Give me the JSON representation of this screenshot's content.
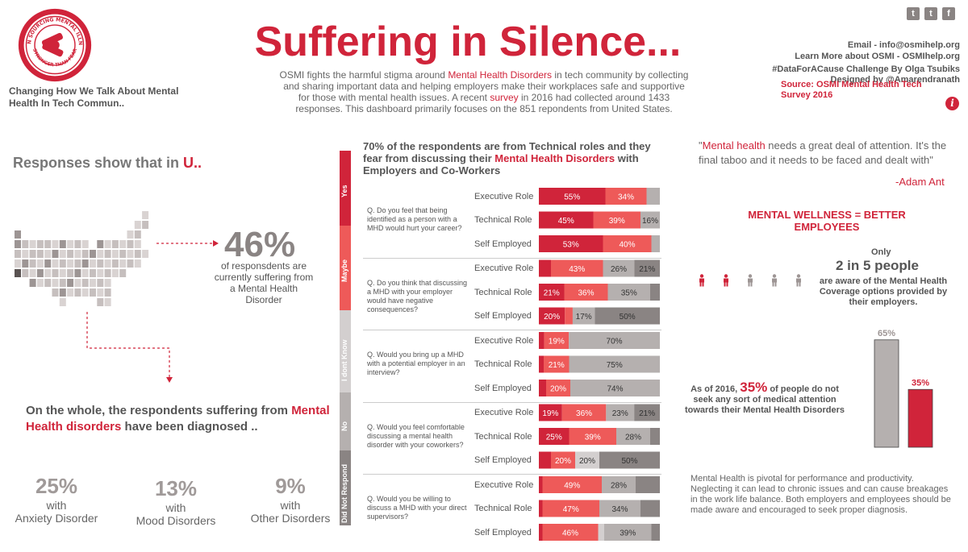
{
  "header": {
    "logo_text_top": "OPEN SOURCING MENTAL ILLNESS",
    "logo_text_bottom": "STRONGER THAN FEAR",
    "tagline": "Changing How We Talk About Mental Health In Tech Commun..",
    "title": "Suffering in Silence...",
    "intro_parts": [
      "OSMI fights the harmful stigma around ",
      "Mental Health Disorders",
      " in tech community by collecting and sharing important data and helping employers make their workplaces safe and supportive for those with mental health issues. A recent ",
      "survey",
      " in 2016 had collected around 1433 responses. This dashboard primarily focuses on the 851 repondents from United States."
    ],
    "email": "Email - info@osmihelp.org",
    "learn_more": "Learn More about OSMI - OSMIhelp.org",
    "challenge": "#DataForACause Challenge By Olga Tsubiks",
    "designed_by": "Designed by @Amarendranath",
    "source": "Source: OSMI Mental Health Tech Survey 2016",
    "social_icons": [
      "twitter-icon",
      "tumblr-icon",
      "facebook-icon"
    ],
    "info_icon": "i"
  },
  "left": {
    "responses_prefix": "Responses show that in ",
    "responses_highlight": "U..",
    "big_stat": "46%",
    "big_stat_desc": "of responsdents are currently suffering from a Mental Health Disorder",
    "diagnosed_prefix": "On the whole, the respondents suffering from ",
    "diagnosed_highlight": "Mental Health disorders",
    "diagnosed_suffix": " have been diagnosed ..",
    "stats": [
      {
        "pct": "25%",
        "line1": "with",
        "line2": "Anxiety Disorder"
      },
      {
        "pct": "13%",
        "line1": "with",
        "line2": "Mood Disorders"
      },
      {
        "pct": "9%",
        "line1": "with",
        "line2": "Other Disorders"
      }
    ]
  },
  "middle": {
    "title_prefix": "70% of the respondents are from Technical roles and they fear from discussing their ",
    "title_highlight": "Mental Health Disorders",
    "title_suffix": " with Employers and Co-Workers",
    "legend": [
      {
        "label": "Yes",
        "color": "#d0243a"
      },
      {
        "label": "Maybe",
        "color": "#ee5a59"
      },
      {
        "label": "I dont Know",
        "color": "#d3cfcf"
      },
      {
        "label": "No",
        "color": "#b5b0af"
      },
      {
        "label": "Did Not Respond",
        "color": "#8a8483"
      }
    ]
  },
  "chart_data": {
    "type": "bar",
    "orientation": "horizontal",
    "stacked": "100%",
    "series_names": [
      "Yes",
      "Maybe",
      "I dont Know",
      "No",
      "Did Not Respond"
    ],
    "colors": [
      "#d0243a",
      "#ee5a59",
      "#d3cfcf",
      "#b5b0af",
      "#8a8483"
    ],
    "groups": [
      {
        "question": "Q. Do you feel that being identified as a person with a MHD would hurt your career?",
        "rows": [
          {
            "role": "Executive Role",
            "values": [
              55,
              34,
              0,
              11,
              0
            ],
            "labels": [
              "55%",
              "34%",
              "",
              "",
              ""
            ]
          },
          {
            "role": "Technical Role",
            "values": [
              45,
              39,
              0,
              16,
              0
            ],
            "labels": [
              "45%",
              "39%",
              "",
              "16%",
              ""
            ]
          },
          {
            "role": "Self Employed",
            "values": [
              53,
              40,
              0,
              7,
              0
            ],
            "labels": [
              "53%",
              "40%",
              "",
              "",
              ""
            ]
          }
        ]
      },
      {
        "question": "Q. Do you think that discussing a MHD with your employer would have negative consequences?",
        "rows": [
          {
            "role": "Executive Role",
            "values": [
              10,
              43,
              0,
              26,
              21
            ],
            "labels": [
              "",
              "43%",
              "",
              "26%",
              "21%"
            ]
          },
          {
            "role": "Technical Role",
            "values": [
              21,
              36,
              0,
              35,
              8
            ],
            "labels": [
              "21%",
              "36%",
              "",
              "35%",
              ""
            ]
          },
          {
            "role": "Self Employed",
            "values": [
              20,
              6,
              0,
              17,
              50
            ],
            "labels": [
              "20%",
              "",
              "",
              "17%",
              "50%"
            ]
          }
        ]
      },
      {
        "question": "Q. Would you bring up a MHD with a potential employer in an interview?",
        "rows": [
          {
            "role": "Executive Role",
            "values": [
              4,
              19,
              0,
              70,
              0
            ],
            "labels": [
              "",
              "19%",
              "",
              "70%",
              ""
            ]
          },
          {
            "role": "Technical Role",
            "values": [
              4,
              21,
              0,
              75,
              0
            ],
            "labels": [
              "",
              "21%",
              "",
              "75%",
              ""
            ]
          },
          {
            "role": "Self Employed",
            "values": [
              6,
              20,
              0,
              74,
              0
            ],
            "labels": [
              "",
              "20%",
              "",
              "74%",
              ""
            ]
          }
        ]
      },
      {
        "question": "Q. Would you feel comfortable discussing a mental health disorder with your coworkers?",
        "rows": [
          {
            "role": "Executive Role",
            "values": [
              19,
              36,
              0,
              23,
              21
            ],
            "labels": [
              "19%",
              "36%",
              "",
              "23%",
              "21%"
            ]
          },
          {
            "role": "Technical Role",
            "values": [
              25,
              39,
              0,
              28,
              8
            ],
            "labels": [
              "25%",
              "39%",
              "",
              "28%",
              ""
            ]
          },
          {
            "role": "Self Employed",
            "values": [
              10,
              20,
              20,
              0,
              50
            ],
            "labels": [
              "",
              "20%",
              "20%",
              "",
              "50%"
            ]
          }
        ]
      },
      {
        "question": "Q. Would you be willing to discuss a MHD with your direct supervisors?",
        "rows": [
          {
            "role": "Executive Role",
            "values": [
              3,
              49,
              0,
              28,
              20
            ],
            "labels": [
              "",
              "49%",
              "",
              "28%",
              ""
            ]
          },
          {
            "role": "Technical Role",
            "values": [
              3,
              47,
              0,
              34,
              16
            ],
            "labels": [
              "",
              "47%",
              "",
              "34%",
              ""
            ]
          },
          {
            "role": "Self Employed",
            "values": [
              3,
              46,
              5,
              39,
              7
            ],
            "labels": [
              "",
              "46%",
              "",
              "39%",
              ""
            ]
          }
        ]
      }
    ]
  },
  "medical_chart": {
    "type": "bar",
    "categories": [
      "seek",
      "do not seek"
    ],
    "values": [
      65,
      35
    ],
    "labels": [
      "65%",
      "35%"
    ],
    "colors": [
      "#b5b0af",
      "#d0243a"
    ],
    "ylim": [
      0,
      100
    ]
  },
  "right": {
    "quote_highlight": "Mental health",
    "quote_rest": " needs a great deal of attention. It's the final taboo and it needs to be faced and dealt with\"",
    "quote_open": "\"",
    "quote_author": "-Adam Ant",
    "wellness": "MENTAL WELLNESS = BETTER EMPLOYEES",
    "only": "Only",
    "two_in_five": "2 in 5 people",
    "aware_text": "are aware of the Mental Health Coverage options provided by their employers.",
    "people_aware": 2,
    "people_total": 5,
    "asof_prefix": "As of 2016, ",
    "asof_pct": "35%",
    "asof_suffix": " of people do not seek any sort of medical attention towards their Mental Health Disorders",
    "pivotal": "Mental Health is pivotal for performance and productivity. Neglecting it can lead to chronic issues and can cause breakages in the work life balance. Both employers and employees should be made aware and encouraged to seek proper diagnosis."
  }
}
